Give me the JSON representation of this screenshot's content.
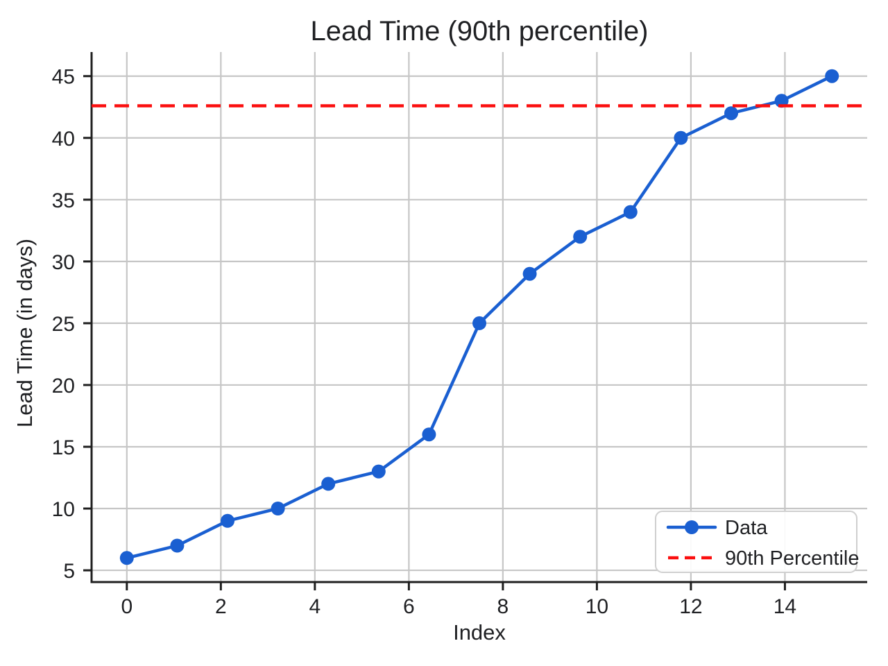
{
  "chart_data": {
    "type": "line",
    "title": "Lead Time (90th percentile)",
    "xlabel": "Index",
    "ylabel": "Lead Time (in days)",
    "x": [
      0,
      1.071,
      2.143,
      3.214,
      4.286,
      5.357,
      6.429,
      7.5,
      8.571,
      9.643,
      10.714,
      11.786,
      12.857,
      13.929,
      15
    ],
    "series": [
      {
        "name": "Data",
        "kind": "data-line",
        "values": [
          6,
          7,
          9,
          10,
          12,
          13,
          16,
          25,
          29,
          32,
          34,
          40,
          42,
          43,
          45
        ],
        "color": "#1a5fd1",
        "marker": "circle",
        "line_style": "solid"
      },
      {
        "name": "90th Percentile",
        "kind": "hline",
        "value": 42.6,
        "color": "#fb0f0f",
        "line_style": "dashed"
      }
    ],
    "xticks": [
      0,
      2,
      4,
      6,
      8,
      10,
      12,
      14
    ],
    "yticks": [
      5,
      10,
      15,
      20,
      25,
      30,
      35,
      40,
      45
    ],
    "xlim": [
      -0.75,
      15.75
    ],
    "ylim": [
      4.05,
      46.95
    ],
    "grid": true,
    "grid_color": "#c6c6c6",
    "spine_color": "#1f1f1f",
    "text_color": "#1f2023",
    "background_color": "#ffffff",
    "legend": {
      "position": "lower-right",
      "entries": [
        "Data",
        "90th Percentile"
      ]
    }
  }
}
